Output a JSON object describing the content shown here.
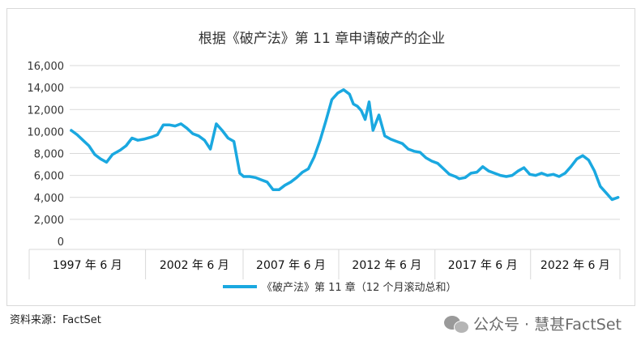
{
  "chart_data": {
    "type": "line",
    "title": "根据《破产法》第 11 章申请破产的企业",
    "ylim": [
      0,
      16000
    ],
    "yticks": [
      "0",
      "2,000",
      "4,000",
      "6,000",
      "8,000",
      "10,000",
      "12,000",
      "14,000",
      "16,000"
    ],
    "ytick_values": [
      0,
      2000,
      4000,
      6000,
      8000,
      10000,
      12000,
      14000,
      16000
    ],
    "xlim": [
      1997.42,
      2025.5
    ],
    "x_category_labels": [
      "1997 年 6 月",
      "2002 年 6 月",
      "2007 年 6 月",
      "2012 年 6 月",
      "2017 年 6 月",
      "2022 年 6 月"
    ],
    "x_category_bounds": [
      1997.42,
      2001.29,
      2006.27,
      2011.15,
      2016.06,
      2020.94,
      2025.5
    ],
    "grid": "horizontal",
    "legend_position": "bottom",
    "series_color": "#1aa8e0",
    "series": [
      {
        "name": "《破产法》第 11 章（12 个月滚动总和）",
        "x": [
          1997.5,
          1997.8,
          1998.1,
          1998.4,
          1998.7,
          1999.0,
          1999.3,
          1999.6,
          2000.0,
          2000.3,
          2000.6,
          2000.9,
          2001.2,
          2001.6,
          2001.9,
          2002.2,
          2002.5,
          2002.8,
          2003.1,
          2003.4,
          2003.7,
          2004.0,
          2004.3,
          2004.6,
          2004.9,
          2005.2,
          2005.5,
          2005.8,
          2006.1,
          2006.3,
          2006.6,
          2006.9,
          2007.2,
          2007.5,
          2007.8,
          2008.1,
          2008.4,
          2008.7,
          2009.0,
          2009.3,
          2009.6,
          2009.9,
          2010.2,
          2010.5,
          2010.8,
          2011.1,
          2011.4,
          2011.7,
          2011.9,
          2012.1,
          2012.3,
          2012.5,
          2012.7,
          2012.9,
          2013.2,
          2013.5,
          2013.8,
          2014.1,
          2014.4,
          2014.7,
          2015.0,
          2015.3,
          2015.6,
          2015.9,
          2016.2,
          2016.5,
          2016.8,
          2017.1,
          2017.3,
          2017.6,
          2017.9,
          2018.2,
          2018.5,
          2018.8,
          2019.1,
          2019.4,
          2019.7,
          2020.0,
          2020.3,
          2020.6,
          2020.9,
          2021.2,
          2021.5,
          2021.8,
          2022.1,
          2022.4,
          2022.7,
          2023.0,
          2023.3,
          2023.6,
          2023.9,
          2024.2,
          2024.5,
          2024.8,
          2025.1,
          2025.4
        ],
        "y": [
          10100,
          9700,
          9200,
          8700,
          7900,
          7500,
          7200,
          7900,
          8300,
          8700,
          9400,
          9200,
          9300,
          9500,
          9700,
          10600,
          10600,
          10500,
          10700,
          10300,
          9800,
          9600,
          9200,
          8400,
          10700,
          10100,
          9400,
          9100,
          6200,
          5900,
          5900,
          5800,
          5600,
          5400,
          4700,
          4700,
          5100,
          5400,
          5800,
          6300,
          6600,
          7700,
          9200,
          11000,
          12900,
          13500,
          13800,
          13400,
          12500,
          12300,
          11900,
          11100,
          12700,
          10100,
          11500,
          9600,
          9300,
          9100,
          8900,
          8400,
          8200,
          8100,
          7600,
          7300,
          7100,
          6600,
          6100,
          5900,
          5700,
          5800,
          6200,
          6300,
          6800,
          6400,
          6200,
          6000,
          5900,
          6000,
          6400,
          6700,
          6100,
          6000,
          6200,
          6000,
          6100,
          5900,
          6200,
          6800,
          7500,
          7800,
          7400,
          6400,
          5000,
          4400,
          3800,
          4000
        ]
      }
    ]
  },
  "footer": {
    "source_label": "资料来源：",
    "source_value": "FactSet"
  },
  "watermark": {
    "icon": "wechat-icon",
    "text": "公众号 · 慧甚FactSet"
  }
}
